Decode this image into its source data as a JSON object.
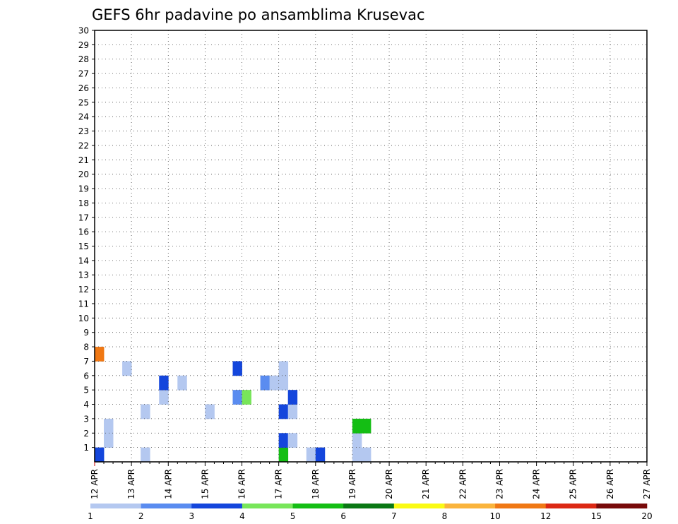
{
  "chart_data": {
    "type": "heatmap",
    "title": "GEFS 6hr padavine po ansamblima Krusevac",
    "xlabel": "",
    "ylabel": "",
    "x_ticks": [
      "12 APR",
      "13 APR",
      "14 APR",
      "15 APR",
      "16 APR",
      "17 APR",
      "18 APR",
      "19 APR",
      "20 APR",
      "21 APR",
      "22 APR",
      "23 APR",
      "24 APR",
      "25 APR",
      "26 APR",
      "27 APR"
    ],
    "y_ticks": [
      "1",
      "2",
      "3",
      "4",
      "5",
      "6",
      "7",
      "8",
      "9",
      "10",
      "11",
      "12",
      "13",
      "14",
      "15",
      "16",
      "17",
      "18",
      "19",
      "20",
      "21",
      "22",
      "23",
      "24",
      "25",
      "26",
      "27",
      "28",
      "29",
      "30"
    ],
    "ylim": [
      0,
      30
    ],
    "grid": true,
    "colorbar": {
      "labels": [
        "1",
        "2",
        "3",
        "4",
        "5",
        "6",
        "7",
        "8",
        "10",
        "12",
        "15",
        "20"
      ],
      "colors": [
        "#b4c8f0",
        "#5a8cf0",
        "#1446dc",
        "#78e65a",
        "#14be14",
        "#0a7814",
        "#fafa14",
        "#fab43c",
        "#f07814",
        "#dc2814",
        "#780a0a"
      ]
    },
    "time_unit": "6h steps from 12 APR 00Z",
    "cells": [
      [
        0,
        1,
        "#1446dc"
      ],
      [
        5,
        1,
        "#b4c8f0"
      ],
      [
        20,
        1,
        "#14be14"
      ],
      [
        23,
        1,
        "#b4c8f0"
      ],
      [
        24,
        1,
        "#1446dc"
      ],
      [
        28,
        1,
        "#b4c8f0"
      ],
      [
        29,
        1,
        "#b4c8f0"
      ],
      [
        1,
        2,
        "#b4c8f0"
      ],
      [
        20,
        2,
        "#1446dc"
      ],
      [
        21,
        2,
        "#b4c8f0"
      ],
      [
        28,
        2,
        "#b4c8f0"
      ],
      [
        1,
        3,
        "#b4c8f0"
      ],
      [
        28,
        3,
        "#14be14"
      ],
      [
        29,
        3,
        "#14be14"
      ],
      [
        5,
        4,
        "#b4c8f0"
      ],
      [
        12,
        4,
        "#b4c8f0"
      ],
      [
        20,
        4,
        "#1446dc"
      ],
      [
        21,
        4,
        "#b4c8f0"
      ],
      [
        7,
        5,
        "#b4c8f0"
      ],
      [
        15,
        5,
        "#5a8cf0"
      ],
      [
        16,
        5,
        "#78e65a"
      ],
      [
        21,
        5,
        "#1446dc"
      ],
      [
        7,
        6,
        "#1446dc"
      ],
      [
        9,
        6,
        "#b4c8f0"
      ],
      [
        18,
        6,
        "#5a8cf0"
      ],
      [
        19,
        6,
        "#b4c8f0"
      ],
      [
        20,
        6,
        "#b4c8f0"
      ],
      [
        3,
        7,
        "#b4c8f0"
      ],
      [
        15,
        7,
        "#1446dc"
      ],
      [
        20,
        7,
        "#b4c8f0"
      ],
      [
        0,
        8,
        "#f07814"
      ]
    ]
  }
}
